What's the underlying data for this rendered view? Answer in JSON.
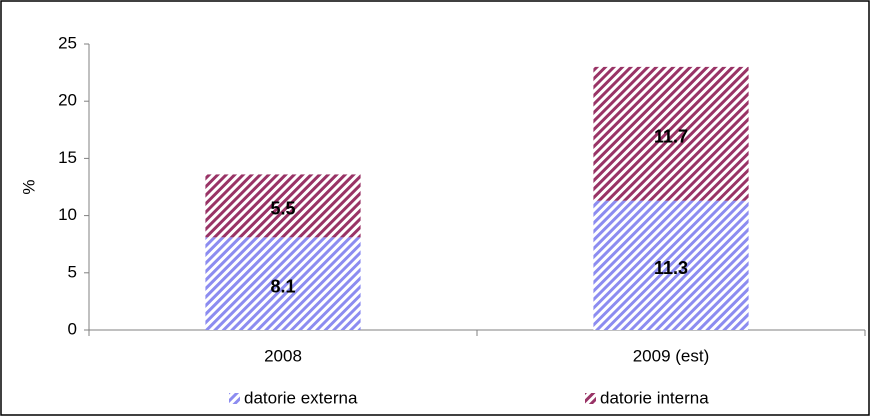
{
  "chart_data": {
    "type": "stacked-bar",
    "y_label": "%",
    "categories": [
      "2008",
      "2009 (est)"
    ],
    "series": [
      {
        "name": "datorie externa",
        "color": "#8c8cf0",
        "values": [
          8.1,
          11.3
        ]
      },
      {
        "name": "datorie interna",
        "color": "#993366",
        "values": [
          5.5,
          11.7
        ]
      }
    ],
    "ylim": [
      0,
      25
    ],
    "yticks": [
      0,
      5,
      10,
      15,
      20,
      25
    ],
    "hatched": true
  }
}
